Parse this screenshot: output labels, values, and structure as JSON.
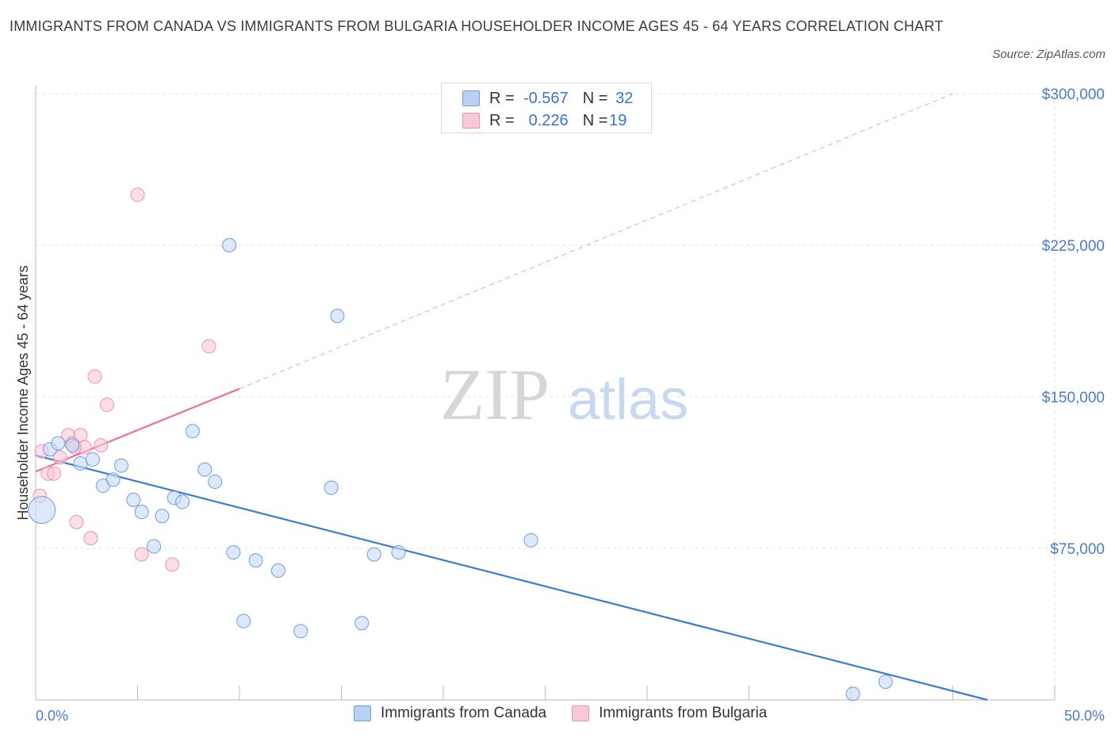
{
  "title": "IMMIGRANTS FROM CANADA VS IMMIGRANTS FROM BULGARIA HOUSEHOLDER INCOME AGES 45 - 64 YEARS CORRELATION CHART",
  "source": "Source: ZipAtlas.com",
  "watermark": {
    "zip": "ZIP",
    "atlas": "atlas"
  },
  "legend": {
    "rows": [
      {
        "r_label": "R =",
        "r_value": "-0.567",
        "n_label": "N =",
        "n_value": "32",
        "color": "#b8d0f4"
      },
      {
        "r_label": "R =",
        "r_value": "0.226",
        "n_label": "N =",
        "n_value": "19",
        "color": "#f9c8d6"
      }
    ]
  },
  "bottom_legend": {
    "canada": "Immigrants from Canada",
    "bulgaria": "Immigrants from Bulgaria"
  },
  "chart_data": {
    "type": "scatter",
    "title": "IMMIGRANTS FROM CANADA VS IMMIGRANTS FROM BULGARIA HOUSEHOLDER INCOME AGES 45 - 64 YEARS CORRELATION CHART",
    "ylabel": "Householder Income Ages 45 - 64 years",
    "xlabel": "",
    "xlim": [
      0,
      50
    ],
    "ylim": [
      0,
      300000
    ],
    "x_tick_labels": [
      "0.0%",
      "50.0%"
    ],
    "y_tick_labels": [
      "$75,000",
      "$150,000",
      "$225,000",
      "$300,000"
    ],
    "y_ticks": [
      75000,
      150000,
      225000,
      300000
    ],
    "grid": true,
    "legend_position": "top-center",
    "colors": {
      "canada": "#3a7bd5",
      "bulgaria": "#e8729a"
    },
    "series": [
      {
        "name": "Immigrants from Canada",
        "color": "#3a7bd5",
        "trend": {
          "x": [
            0,
            46.7
          ],
          "y": [
            121000,
            0
          ]
        },
        "points": [
          {
            "x": 0.3,
            "y": 94000,
            "size": "large"
          },
          {
            "x": 0.7,
            "y": 124000
          },
          {
            "x": 1.1,
            "y": 127000
          },
          {
            "x": 1.8,
            "y": 126000
          },
          {
            "x": 2.2,
            "y": 117000
          },
          {
            "x": 2.8,
            "y": 119000
          },
          {
            "x": 3.3,
            "y": 106000
          },
          {
            "x": 3.8,
            "y": 109000
          },
          {
            "x": 4.2,
            "y": 116000
          },
          {
            "x": 4.8,
            "y": 99000
          },
          {
            "x": 5.2,
            "y": 93000
          },
          {
            "x": 5.8,
            "y": 76000
          },
          {
            "x": 6.2,
            "y": 91000
          },
          {
            "x": 6.8,
            "y": 100000
          },
          {
            "x": 7.2,
            "y": 98000
          },
          {
            "x": 7.7,
            "y": 133000
          },
          {
            "x": 8.3,
            "y": 114000
          },
          {
            "x": 8.8,
            "y": 108000
          },
          {
            "x": 9.5,
            "y": 225000
          },
          {
            "x": 9.7,
            "y": 73000
          },
          {
            "x": 10.2,
            "y": 39000
          },
          {
            "x": 10.8,
            "y": 69000
          },
          {
            "x": 11.9,
            "y": 64000
          },
          {
            "x": 13.0,
            "y": 34000
          },
          {
            "x": 14.5,
            "y": 105000
          },
          {
            "x": 14.8,
            "y": 190000
          },
          {
            "x": 16.0,
            "y": 38000
          },
          {
            "x": 16.6,
            "y": 72000
          },
          {
            "x": 17.8,
            "y": 73000
          },
          {
            "x": 24.3,
            "y": 79000
          },
          {
            "x": 40.1,
            "y": 3000
          },
          {
            "x": 41.7,
            "y": 9000
          }
        ]
      },
      {
        "name": "Immigrants from Bulgaria",
        "color": "#e8729a",
        "trend": {
          "x": [
            0,
            10
          ],
          "y": [
            113000,
            154000
          ],
          "dashed_extension": {
            "x": [
              10,
              45
            ],
            "y": [
              154000,
              300000
            ]
          }
        },
        "points": [
          {
            "x": 0.2,
            "y": 101000
          },
          {
            "x": 0.3,
            "y": 123000
          },
          {
            "x": 0.6,
            "y": 112000
          },
          {
            "x": 0.9,
            "y": 112000
          },
          {
            "x": 1.2,
            "y": 120000
          },
          {
            "x": 1.6,
            "y": 131000
          },
          {
            "x": 1.8,
            "y": 127000
          },
          {
            "x": 2.0,
            "y": 88000
          },
          {
            "x": 2.2,
            "y": 131000
          },
          {
            "x": 2.4,
            "y": 125000
          },
          {
            "x": 2.7,
            "y": 80000
          },
          {
            "x": 2.9,
            "y": 160000
          },
          {
            "x": 3.2,
            "y": 126000
          },
          {
            "x": 3.5,
            "y": 146000
          },
          {
            "x": 5.0,
            "y": 250000
          },
          {
            "x": 5.2,
            "y": 72000
          },
          {
            "x": 6.7,
            "y": 67000
          },
          {
            "x": 8.5,
            "y": 175000
          },
          {
            "x": 1.9,
            "y": 125000
          }
        ]
      }
    ]
  }
}
